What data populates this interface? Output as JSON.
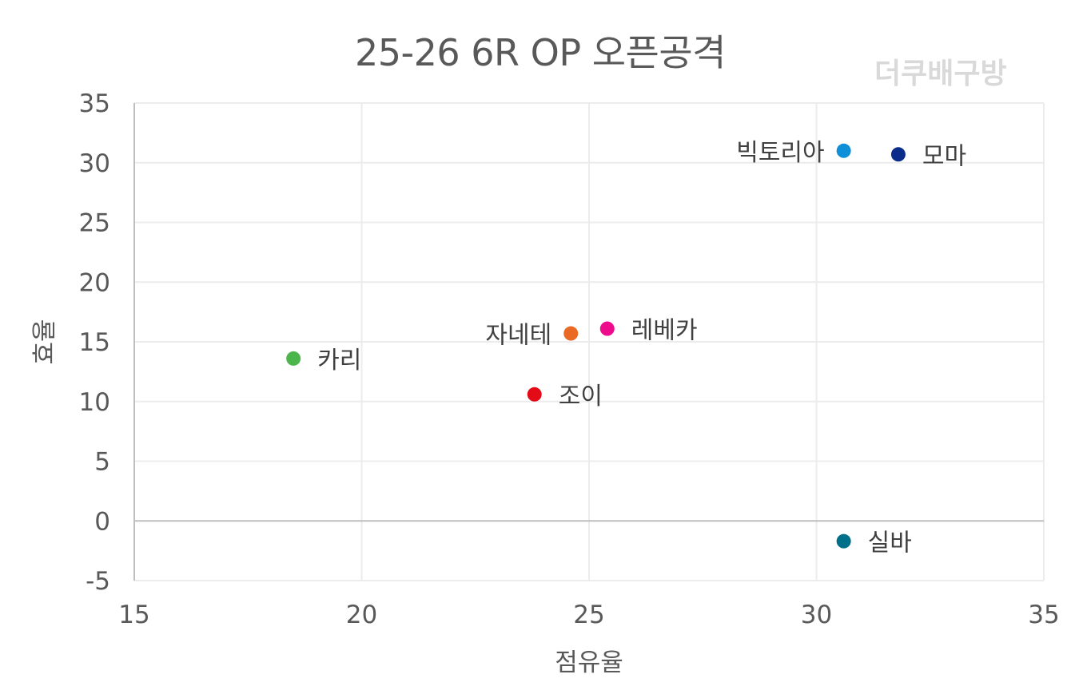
{
  "chart_data": {
    "type": "scatter",
    "title": "25-26 6R OP 오픈공격",
    "watermark": "더쿠배구방",
    "xlabel": "점유율",
    "ylabel": "효율",
    "xlim": [
      15,
      35
    ],
    "ylim": [
      -5,
      35
    ],
    "x_ticks": [
      15,
      20,
      25,
      30,
      35
    ],
    "y_ticks": [
      -5,
      0,
      5,
      10,
      15,
      20,
      25,
      30,
      35
    ],
    "grid": true,
    "points": [
      {
        "label": "빅토리아",
        "x": 30.6,
        "y": 31.0,
        "color": "#0f8fd8",
        "label_side": "left"
      },
      {
        "label": "모마",
        "x": 31.8,
        "y": 30.7,
        "color": "#0a2c8a",
        "label_side": "right"
      },
      {
        "label": "자네테",
        "x": 24.6,
        "y": 15.7,
        "color": "#ea6a25",
        "label_side": "left"
      },
      {
        "label": "레베카",
        "x": 25.4,
        "y": 16.1,
        "color": "#ee0c8d",
        "label_side": "right"
      },
      {
        "label": "카리",
        "x": 18.5,
        "y": 13.6,
        "color": "#4cb64c",
        "label_side": "right"
      },
      {
        "label": "조이",
        "x": 23.8,
        "y": 10.6,
        "color": "#e30b17",
        "label_side": "right"
      },
      {
        "label": "실바",
        "x": 30.6,
        "y": -1.7,
        "color": "#00708a",
        "label_side": "right"
      }
    ]
  }
}
